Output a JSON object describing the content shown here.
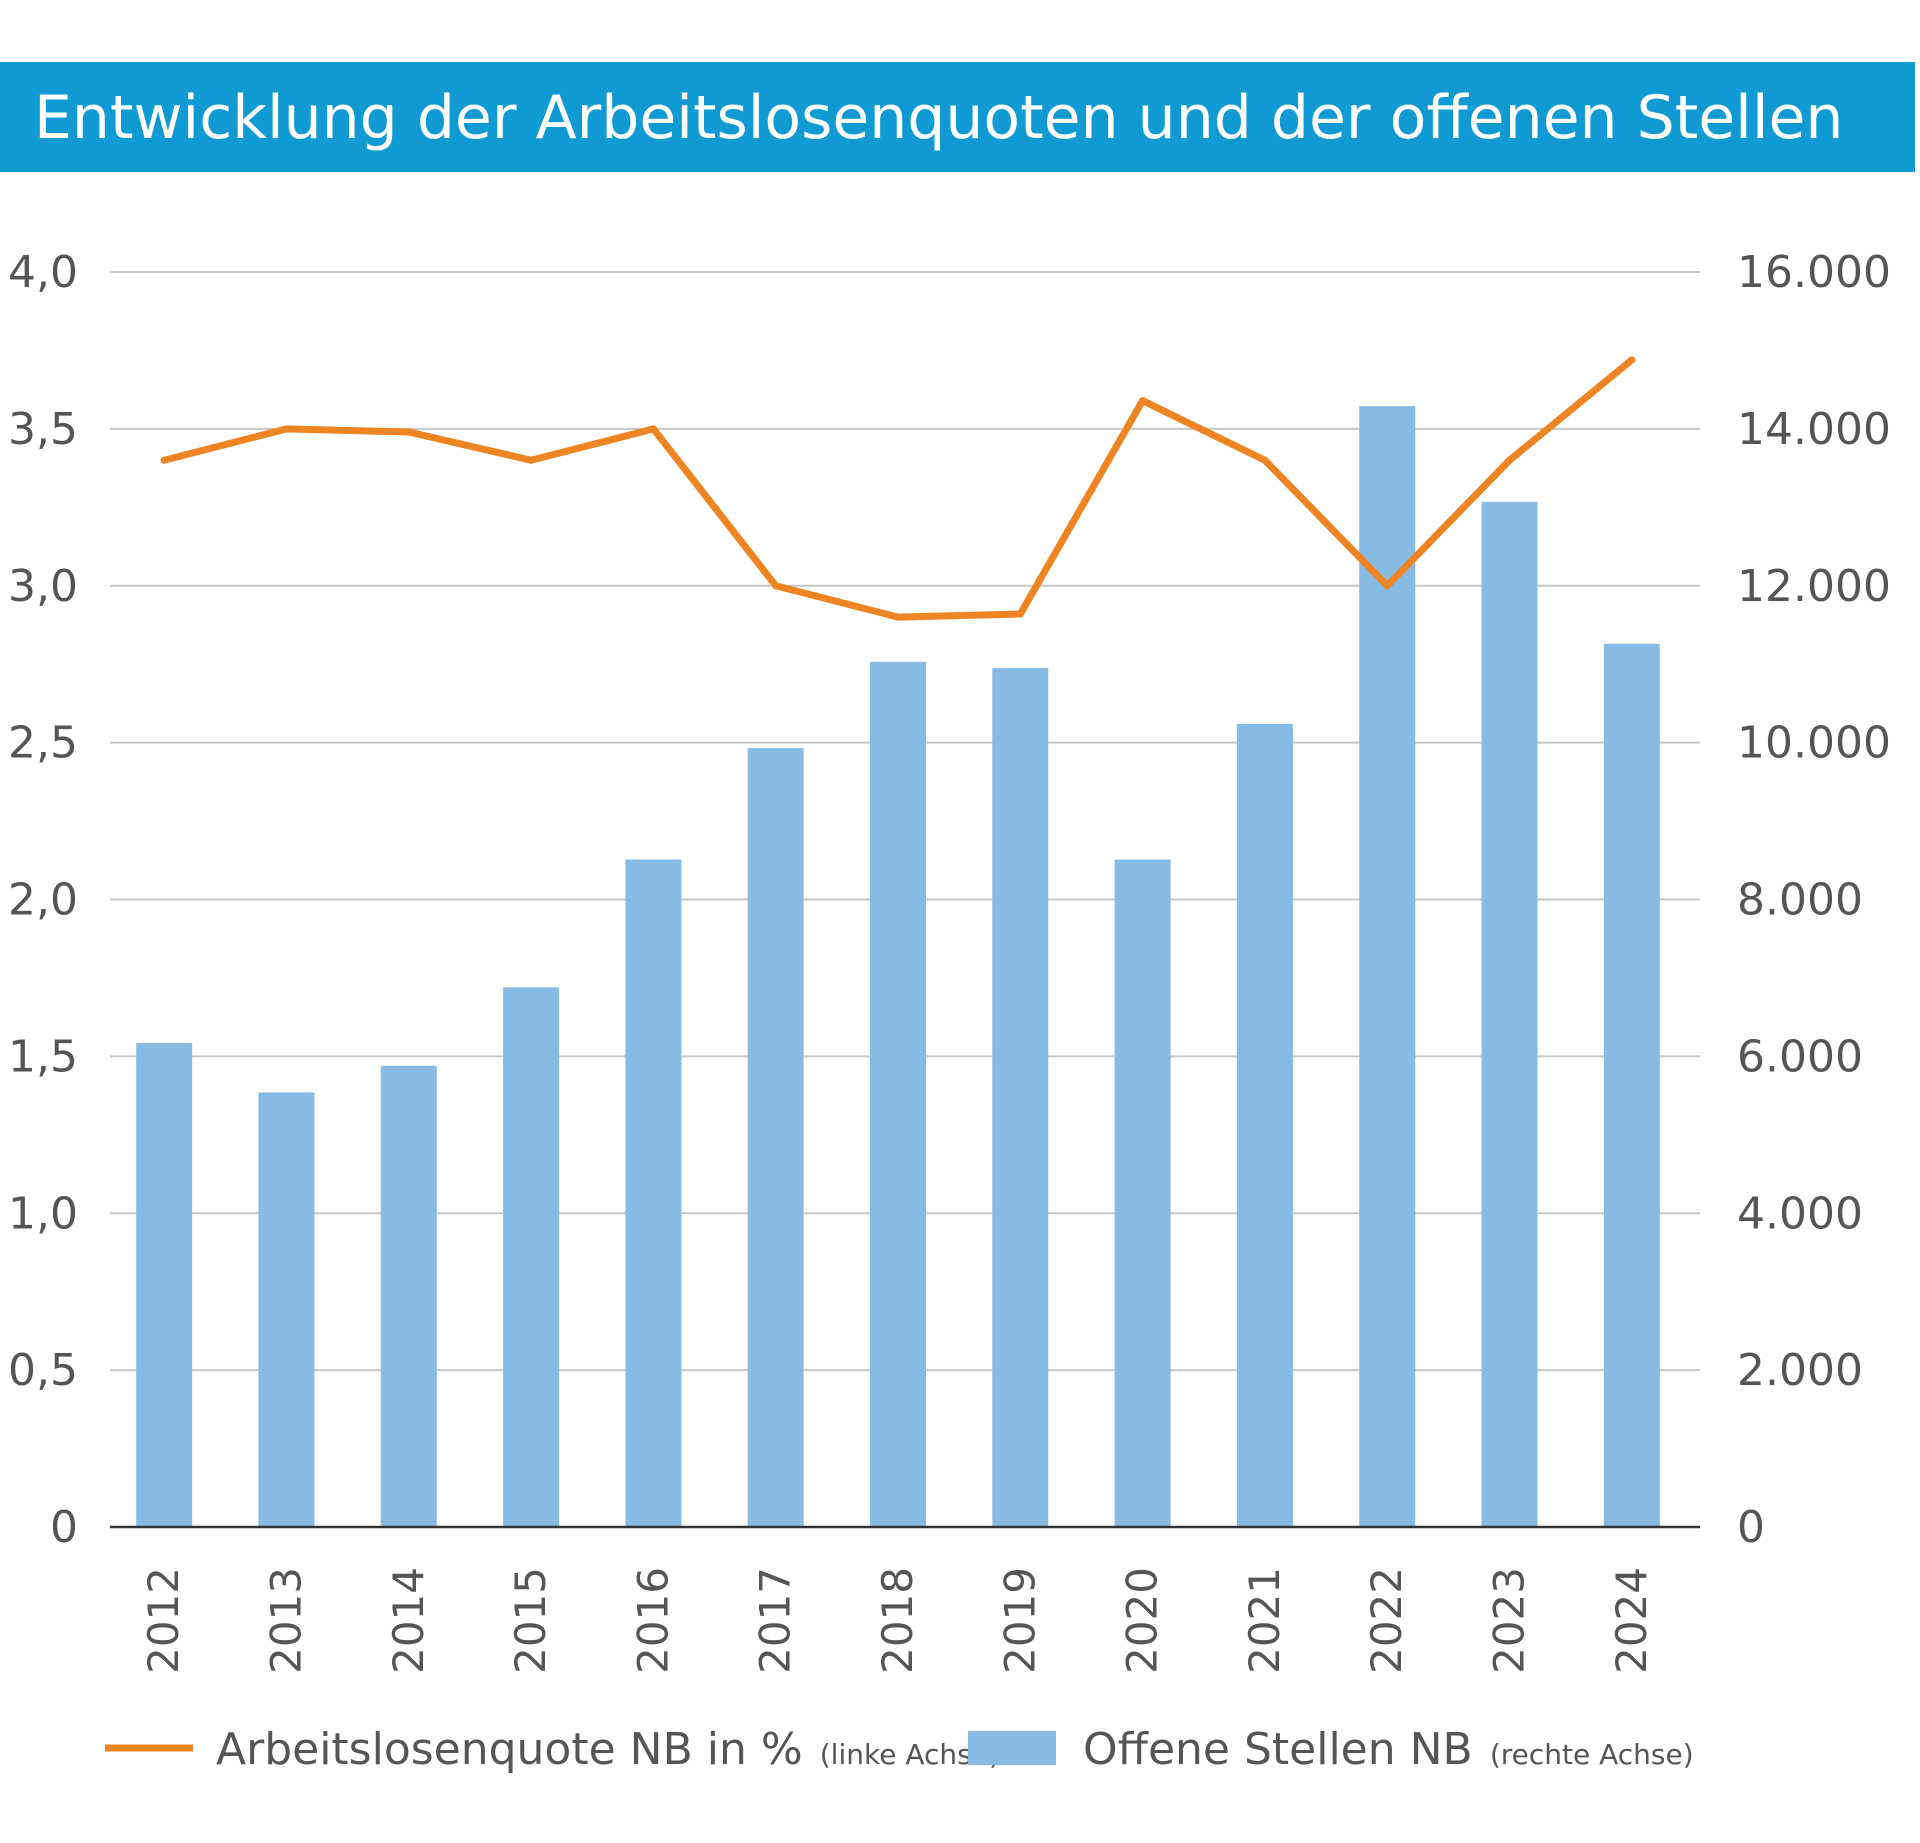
{
  "title": "Entwicklung der Arbeitslosenquoten und der offenen Stellen",
  "colors": {
    "title_bar": "#0f9ad4",
    "bars": "#88bbe4",
    "line": "#ee8422",
    "grid": "#c8c8c8",
    "axis": "#333333",
    "text": "#555555"
  },
  "chart_data": {
    "type": "bar",
    "categories": [
      "2012",
      "2013",
      "2014",
      "2015",
      "2016",
      "2017",
      "2018",
      "2019",
      "2020",
      "2021",
      "2022",
      "2023",
      "2024"
    ],
    "series": [
      {
        "name": "Offene Stellen NB",
        "name_suffix": "(rechte Achse)",
        "type": "bar",
        "axis": "right",
        "values": [
          6170,
          5540,
          5880,
          6880,
          8510,
          9930,
          11030,
          10950,
          8510,
          10240,
          14290,
          13070,
          11260
        ]
      },
      {
        "name": "Arbeitslosenquote NB in %",
        "name_suffix": "(linke Achse)",
        "type": "line",
        "axis": "left",
        "values": [
          3.4,
          3.5,
          3.49,
          3.4,
          3.5,
          3.0,
          2.9,
          2.91,
          3.59,
          3.4,
          3.0,
          3.4,
          3.72
        ]
      }
    ],
    "left_axis": {
      "ylim": [
        0,
        4.0
      ],
      "ticks": [
        0,
        0.5,
        1.0,
        1.5,
        2.0,
        2.5,
        3.0,
        3.5,
        4.0
      ],
      "tick_labels": [
        "0",
        "0,5",
        "1,0",
        "1,5",
        "2,0",
        "2,5",
        "3,0",
        "3,5",
        "4,0"
      ]
    },
    "right_axis": {
      "ylim": [
        0,
        16000
      ],
      "ticks": [
        0,
        2000,
        4000,
        6000,
        8000,
        10000,
        12000,
        14000,
        16000
      ],
      "tick_labels": [
        "0",
        "2.000",
        "4.000",
        "6.000",
        "8.000",
        "10.000",
        "12.000",
        "14.000",
        "16.000"
      ]
    },
    "grid": true,
    "legend_position": "bottom"
  }
}
